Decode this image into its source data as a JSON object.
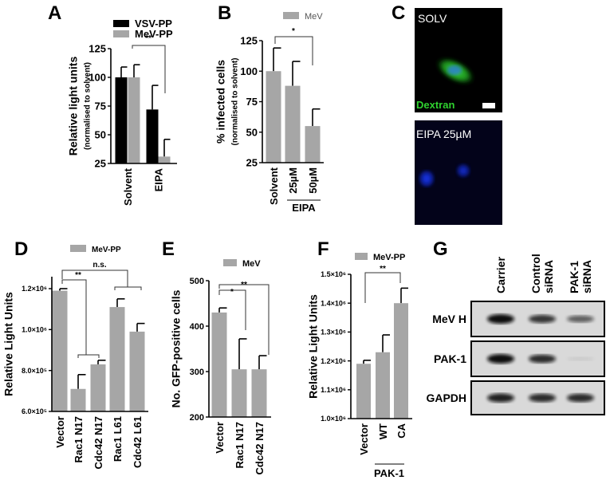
{
  "panel_letters": [
    "A",
    "B",
    "C",
    "D",
    "E",
    "F",
    "G"
  ],
  "colors": {
    "black_bar": "#000000",
    "grey_bar": "#a6a6a6",
    "dextran": "#2fd12f",
    "micro_bg": "#000000",
    "micro_bg2": "#03031a",
    "nucleus": "#1030e0"
  },
  "chart_data": [
    {
      "panel": "A",
      "type": "bar",
      "categories": [
        "Solvent",
        "EIPA"
      ],
      "series": [
        {
          "name": "VSV-PP",
          "color": "#000000",
          "values": [
            100,
            72
          ],
          "errors": [
            9,
            21
          ]
        },
        {
          "name": "MeV-PP",
          "color": "#a6a6a6",
          "values": [
            100,
            31
          ],
          "errors": [
            11,
            15
          ]
        }
      ],
      "ylabel": "Relative light units",
      "ylabel_sub": "(normalised to solvent)",
      "ylim": [
        25,
        125
      ],
      "yticks": [
        25,
        50,
        75,
        100,
        125
      ],
      "ytick_labels": [
        "25",
        "50",
        "75",
        "100",
        "125"
      ],
      "annotations": [
        "**"
      ],
      "legend": "top"
    },
    {
      "panel": "B",
      "type": "bar",
      "categories": [
        "Solvent",
        "25µM",
        "50µM"
      ],
      "group_label": "EIPA",
      "series": [
        {
          "name": "MeV",
          "color": "#a6a6a6",
          "values": [
            100,
            88,
            55
          ],
          "errors": [
            19,
            20,
            14
          ]
        }
      ],
      "ylabel": "% infected cells",
      "ylabel_sub": "(normalised to solvent)",
      "ylim": [
        25,
        125
      ],
      "yticks": [
        25,
        50,
        75,
        100,
        125
      ],
      "ytick_labels": [
        "25",
        "50",
        "75",
        "100",
        "125"
      ],
      "annotations": [
        "*"
      ],
      "legend": "top"
    },
    {
      "panel": "D",
      "type": "bar",
      "categories": [
        "Vector",
        "Rac1 N17",
        "Cdc42 N17",
        "Rac1 L61",
        "Cdc42 L61"
      ],
      "series": [
        {
          "name": "MeV-PP",
          "color": "#a6a6a6",
          "values": [
            1190000,
            710000,
            830000,
            1110000,
            990000
          ],
          "errors": [
            10000,
            70000,
            20000,
            40000,
            40000
          ]
        }
      ],
      "ylabel": "Relative  Light  Units",
      "ylabel_sub": "",
      "ylim": [
        600000,
        1200000
      ],
      "yticks": [
        600000,
        800000,
        1000000,
        1200000
      ],
      "ytick_labels": [
        "6.0×10⁵",
        "8.0×10⁵",
        "1.0×10⁶",
        "1.2×10⁶"
      ],
      "annotations": [
        "**",
        "n.s."
      ],
      "legend": "top"
    },
    {
      "panel": "E",
      "type": "bar",
      "categories": [
        "Vector",
        "Rac1 N17",
        "Cdc42 N17"
      ],
      "series": [
        {
          "name": "MeV",
          "color": "#a6a6a6",
          "values": [
            430,
            305,
            305
          ],
          "errors": [
            10,
            67,
            30
          ]
        }
      ],
      "ylabel": "No. GFP-positive cells",
      "ylabel_sub": "",
      "ylim": [
        200,
        500
      ],
      "yticks": [
        200,
        300,
        400,
        500
      ],
      "ytick_labels": [
        "200",
        "300",
        "400",
        "500"
      ],
      "annotations": [
        "*",
        "**"
      ],
      "legend": "top"
    },
    {
      "panel": "F",
      "type": "bar",
      "categories": [
        "Vector",
        "WT",
        "CA"
      ],
      "group_label": "PAK-1",
      "series": [
        {
          "name": "MeV-PP",
          "color": "#a6a6a6",
          "values": [
            1190000,
            1230000,
            1400000
          ],
          "errors": [
            12000,
            60000,
            52000
          ]
        }
      ],
      "ylabel": "Relative  Light  Units",
      "ylabel_sub": "",
      "ylim": [
        1000000,
        1500000
      ],
      "yticks": [
        1000000,
        1100000,
        1200000,
        1300000,
        1400000,
        1500000
      ],
      "ytick_labels": [
        "1.0×10⁶",
        "1.1×10⁶",
        "1.2×10⁶",
        "1.3×10⁶",
        "1.4×10⁶",
        "1.5×10⁶"
      ],
      "annotations": [
        "**"
      ],
      "legend": "top"
    }
  ],
  "microscopy": {
    "top_label": "SOLV",
    "top_stain": "Dextran",
    "bottom_label": "EIPA 25µM"
  },
  "western_blot": {
    "columns": [
      "Carrier",
      "Control siRNA",
      "PAK-1 siRNA"
    ],
    "column_lines": [
      [
        "Carrier"
      ],
      [
        "Control",
        "siRNA"
      ],
      [
        "PAK-1",
        "siRNA"
      ]
    ],
    "rows": [
      {
        "label": "MeV H",
        "band_intensity": [
          1.0,
          0.8,
          0.6
        ]
      },
      {
        "label": "PAK-1",
        "band_intensity": [
          1.0,
          0.85,
          0.08
        ]
      },
      {
        "label": "GAPDH",
        "band_intensity": [
          0.9,
          0.85,
          0.85
        ]
      }
    ]
  }
}
